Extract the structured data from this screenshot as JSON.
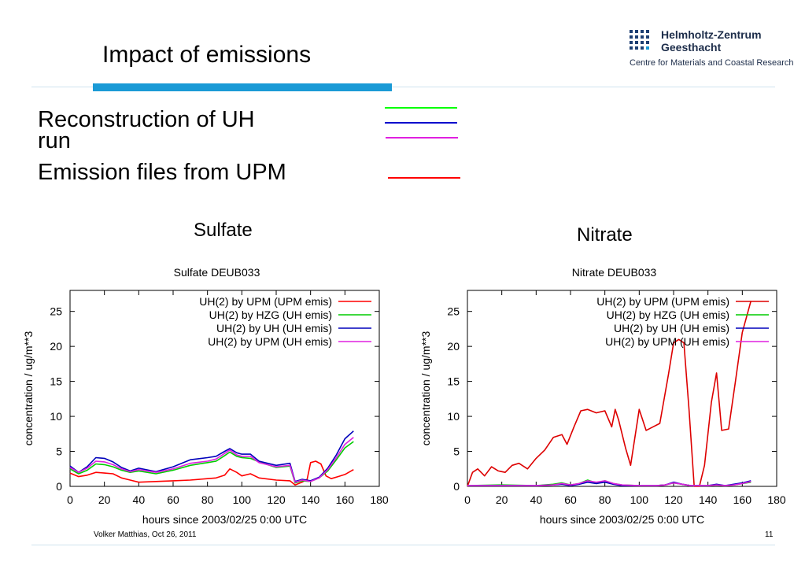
{
  "slide": {
    "title": "Impact of emissions",
    "logo": {
      "name_line1": "Helmholtz-Zentrum",
      "name_line2": "Geesthacht",
      "subtitle": "Centre for Materials and Coastal Research"
    },
    "legend_text": {
      "reconstruction_line1": "Reconstruction of UH",
      "reconstruction_line2": "run",
      "emission_files": "Emission files from UPM"
    },
    "legend_colors": [
      "#00ff00",
      "#0000cc",
      "#e020e0",
      "#ff0000"
    ],
    "sulfate_heading": "Sulfate",
    "nitrate_heading": "Nitrate",
    "footer_author": "Volker Matthias, Oct 26, 2011",
    "page_number": "11"
  },
  "chart_data": [
    {
      "type": "line",
      "title": "Sulfate DEUB033",
      "xlabel": "hours since 2003/02/25 0:00 UTC",
      "ylabel": "concentration / ug/m**3",
      "xlim": [
        0,
        180
      ],
      "ylim": [
        0,
        28
      ],
      "xticks": [
        0,
        20,
        40,
        60,
        80,
        100,
        120,
        140,
        160,
        180
      ],
      "yticks": [
        0,
        5,
        10,
        15,
        20,
        25
      ],
      "legend_position": "top-right",
      "series": [
        {
          "name": "UH(2) by UPM (UPM emis)",
          "color": "#ff0000",
          "x": [
            0,
            5,
            10,
            15,
            20,
            25,
            30,
            35,
            40,
            50,
            60,
            70,
            80,
            85,
            90,
            93,
            97,
            100,
            105,
            110,
            120,
            128,
            131,
            135,
            138,
            140,
            143,
            146,
            149,
            152,
            156,
            160,
            165
          ],
          "y": [
            1.9,
            1.4,
            1.6,
            2.0,
            1.9,
            1.8,
            1.2,
            0.9,
            0.6,
            0.7,
            0.8,
            0.9,
            1.1,
            1.2,
            1.6,
            2.5,
            2.0,
            1.5,
            1.8,
            1.2,
            0.9,
            0.8,
            0.2,
            0.6,
            1.0,
            3.4,
            3.6,
            3.2,
            1.5,
            1.1,
            1.4,
            1.7,
            2.4
          ]
        },
        {
          "name": "UH(2) by HZG (UH emis)",
          "color": "#00cc00",
          "x": [
            0,
            5,
            10,
            15,
            20,
            25,
            30,
            35,
            40,
            50,
            60,
            70,
            80,
            85,
            90,
            93,
            97,
            100,
            105,
            110,
            120,
            128,
            131,
            135,
            140,
            145,
            150,
            155,
            160,
            165
          ],
          "y": [
            2.5,
            1.8,
            2.3,
            3.2,
            3.1,
            2.8,
            2.3,
            2.0,
            2.2,
            1.8,
            2.3,
            3.0,
            3.4,
            3.6,
            4.4,
            4.9,
            4.3,
            4.1,
            4.0,
            3.5,
            2.7,
            2.9,
            0.5,
            0.8,
            0.7,
            1.2,
            2.2,
            3.8,
            5.5,
            6.4
          ]
        },
        {
          "name": "UH(2) by UH (UH emis)",
          "color": "#0000bb",
          "x": [
            0,
            5,
            10,
            15,
            20,
            25,
            30,
            35,
            40,
            50,
            60,
            70,
            80,
            85,
            90,
            93,
            97,
            100,
            105,
            110,
            120,
            128,
            131,
            135,
            140,
            145,
            150,
            155,
            160,
            165
          ],
          "y": [
            2.9,
            2.0,
            2.8,
            4.1,
            4.0,
            3.5,
            2.7,
            2.2,
            2.6,
            2.1,
            2.8,
            3.8,
            4.1,
            4.3,
            5.0,
            5.4,
            4.8,
            4.6,
            4.6,
            3.6,
            3.0,
            3.3,
            0.7,
            1.0,
            0.8,
            1.3,
            2.6,
            4.5,
            6.8,
            7.9
          ]
        },
        {
          "name": "UH(2) by UPM (UH emis)",
          "color": "#e020e0",
          "x": [
            0,
            5,
            10,
            15,
            20,
            25,
            30,
            35,
            40,
            50,
            60,
            70,
            80,
            85,
            90,
            93,
            97,
            100,
            105,
            110,
            120,
            128,
            131,
            135,
            140,
            145,
            150,
            155,
            160,
            165
          ],
          "y": [
            2.7,
            2.0,
            2.6,
            3.6,
            3.5,
            3.1,
            2.5,
            2.1,
            2.4,
            2.0,
            2.5,
            3.3,
            3.6,
            3.9,
            4.7,
            5.2,
            4.5,
            4.3,
            4.3,
            3.4,
            2.8,
            3.0,
            0.6,
            0.9,
            0.7,
            1.2,
            2.4,
            4.1,
            6.0,
            7.0
          ]
        }
      ]
    },
    {
      "type": "line",
      "title": "Nitrate DEUB033",
      "xlabel": "hours since 2003/02/25 0:00 UTC",
      "ylabel": "concentration / ug/m**3",
      "xlim": [
        0,
        180
      ],
      "ylim": [
        0,
        28
      ],
      "xticks": [
        0,
        20,
        40,
        60,
        80,
        100,
        120,
        140,
        160,
        180
      ],
      "yticks": [
        0,
        5,
        10,
        15,
        20,
        25
      ],
      "legend_position": "top-right",
      "series": [
        {
          "name": "UH(2) by UPM (UPM emis)",
          "color": "#dd0000",
          "x": [
            0,
            3,
            6,
            10,
            14,
            18,
            22,
            26,
            30,
            35,
            40,
            45,
            50,
            55,
            58,
            62,
            66,
            70,
            75,
            80,
            84,
            86,
            88,
            92,
            95,
            100,
            104,
            108,
            112,
            117,
            120,
            123,
            126,
            129,
            132,
            135,
            138,
            142,
            145,
            148,
            152,
            156,
            160,
            165
          ],
          "y": [
            0,
            2.0,
            2.5,
            1.5,
            2.8,
            2.2,
            2.0,
            3.0,
            3.3,
            2.5,
            4.0,
            5.2,
            7.0,
            7.4,
            6.0,
            8.5,
            10.8,
            11.0,
            10.5,
            10.8,
            8.5,
            11.0,
            9.5,
            5.5,
            3.0,
            11.0,
            8.0,
            8.5,
            9.0,
            16.0,
            20.5,
            21.0,
            20.5,
            11.0,
            0.0,
            0.0,
            3.0,
            12.0,
            16.2,
            8.0,
            8.2,
            15.0,
            22.0,
            26.5
          ]
        },
        {
          "name": "UH(2) by HZG (UH emis)",
          "color": "#00cc00",
          "x": [
            0,
            20,
            40,
            50,
            55,
            60,
            65,
            70,
            75,
            80,
            85,
            90,
            100,
            110,
            115,
            120,
            125,
            130,
            135,
            140,
            145,
            150,
            155,
            160,
            165
          ],
          "y": [
            0.1,
            0.2,
            0.1,
            0.3,
            0.5,
            0.2,
            0.4,
            0.9,
            0.5,
            0.8,
            0.4,
            0.2,
            0.1,
            0.1,
            0.2,
            0.5,
            0.3,
            0.1,
            0.1,
            0.1,
            0.2,
            0.1,
            0.2,
            0.4,
            0.6
          ]
        },
        {
          "name": "UH(2) by UH (UH emis)",
          "color": "#0000bb",
          "x": [
            0,
            20,
            40,
            50,
            55,
            60,
            65,
            70,
            75,
            80,
            85,
            90,
            100,
            110,
            115,
            120,
            125,
            130,
            135,
            140,
            145,
            150,
            155,
            160,
            165
          ],
          "y": [
            0.1,
            0.1,
            0.1,
            0.2,
            0.3,
            0.1,
            0.3,
            0.6,
            0.4,
            0.6,
            0.3,
            0.1,
            0.1,
            0.1,
            0.2,
            0.6,
            0.3,
            0.1,
            0.1,
            0.1,
            0.3,
            0.1,
            0.3,
            0.5,
            0.8
          ]
        },
        {
          "name": "UH(2) by UPM (UH emis)",
          "color": "#e020e0",
          "x": [
            0,
            20,
            40,
            50,
            55,
            60,
            65,
            70,
            75,
            80,
            85,
            90,
            100,
            110,
            115,
            120,
            125,
            130,
            135,
            140,
            145,
            150,
            155,
            160,
            165
          ],
          "y": [
            0.1,
            0.1,
            0.1,
            0.2,
            0.4,
            0.2,
            0.4,
            0.8,
            0.6,
            0.8,
            0.4,
            0.2,
            0.1,
            0.1,
            0.2,
            0.5,
            0.3,
            0.1,
            0.1,
            0.1,
            0.2,
            0.1,
            0.2,
            0.4,
            0.7
          ]
        }
      ]
    }
  ]
}
